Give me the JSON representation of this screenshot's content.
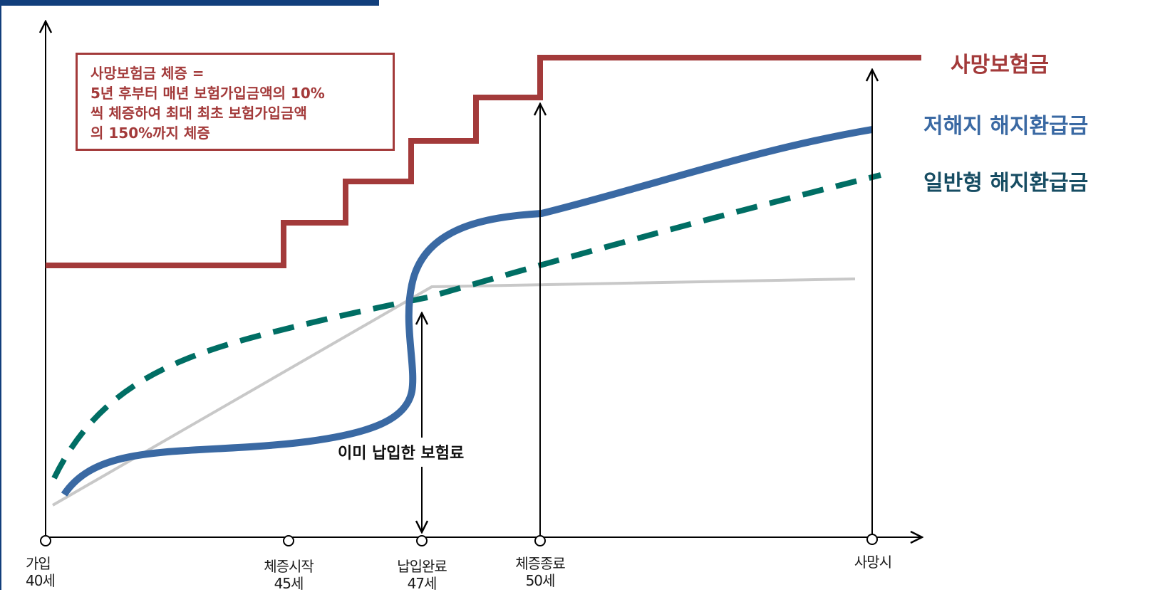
{
  "note": {
    "lines": [
      "사망보험금 체증 =",
      "5년 후부터 매년 보험가입금액의 10%",
      "씩 체증하여 최대 최초 보험가입금액",
      "의 150%까지 체증"
    ]
  },
  "legend": {
    "death_benefit": "사망보험금",
    "low_surrender": "저해지 해지환급금",
    "standard_surrender": "일반형 해지환급금"
  },
  "annotation": {
    "paid_premium": "이미 납입한 보험료"
  },
  "timeline": [
    {
      "label": "가입",
      "age": "40세"
    },
    {
      "label": "체증시작",
      "age": "45세"
    },
    {
      "label": "납입완료",
      "age": "47세"
    },
    {
      "label": "체증종료",
      "age": "50세"
    },
    {
      "label": "사망시",
      "age": ""
    }
  ],
  "colors": {
    "death_benefit": "#a33a3a",
    "low_surrender": "#3a69a3",
    "standard_surrender": "#006e64",
    "paid_premium": "#c8c8c8",
    "frame": "#123f7c"
  }
}
